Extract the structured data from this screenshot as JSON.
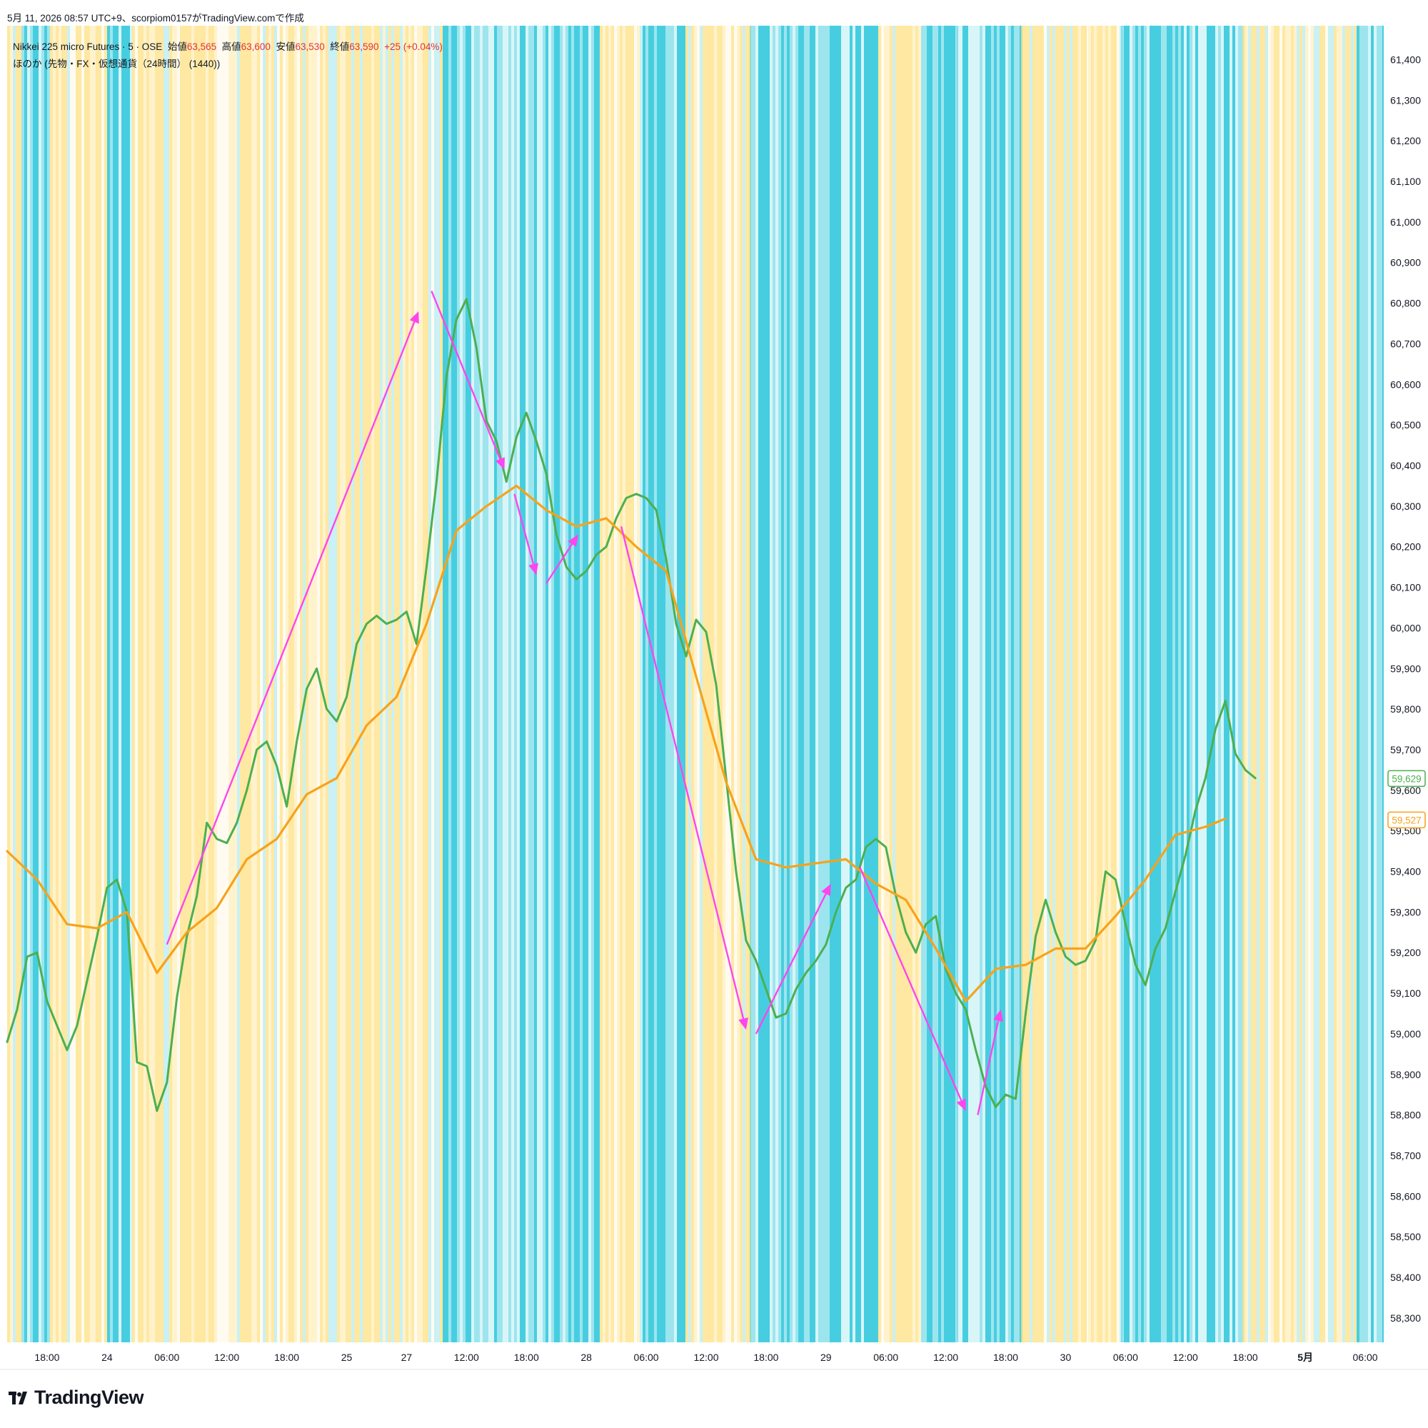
{
  "credit": "5月 11, 2026 08:57 UTC+9、scorpiom0157がTradingView.comで作成",
  "header": {
    "symbol": "Nikkei 225 micro Futures · 5 · OSE",
    "open_label": "始値",
    "open_value": "63,565",
    "high_label": "高値",
    "high_value": "63,600",
    "low_label": "安値",
    "low_value": "63,530",
    "close_label": "終値",
    "close_value": "63,590",
    "change": "+25 (+0.04%)",
    "indicator": "ほのか (先物・FX・仮想通貨（24時間） (1440))"
  },
  "logo": {
    "text": "TradingView",
    "icon": "tradingview-logo-icon"
  },
  "colors": {
    "price_line": "#4caf50",
    "ma_line": "#f7a21b",
    "arrows": "#ff44f0",
    "band_cyan": "#26c6da",
    "band_yellow": "#ffe082",
    "axis_text": "#131722"
  },
  "chart_data": {
    "type": "line",
    "ylim": [
      58240,
      61480
    ],
    "y_ticks": [
      "61,400",
      "61,300",
      "61,200",
      "61,100",
      "61,000",
      "60,900",
      "60,800",
      "60,700",
      "60,600",
      "60,500",
      "60,400",
      "60,300",
      "60,200",
      "60,100",
      "60,000",
      "59,900",
      "59,800",
      "59,700",
      "59,600",
      "59,500",
      "59,400",
      "59,300",
      "59,200",
      "59,100",
      "59,000",
      "58,900",
      "58,800",
      "58,700",
      "58,600",
      "58,500",
      "58,400",
      "58,300"
    ],
    "x_ticks": [
      {
        "label": "18:00",
        "t": 4
      },
      {
        "label": "24",
        "t": 10
      },
      {
        "label": "06:00",
        "t": 16
      },
      {
        "label": "12:00",
        "t": 22
      },
      {
        "label": "18:00",
        "t": 28
      },
      {
        "label": "25",
        "t": 34
      },
      {
        "label": "27",
        "t": 40
      },
      {
        "label": "12:00",
        "t": 46
      },
      {
        "label": "18:00",
        "t": 52
      },
      {
        "label": "28",
        "t": 58
      },
      {
        "label": "06:00",
        "t": 64
      },
      {
        "label": "12:00",
        "t": 70
      },
      {
        "label": "18:00",
        "t": 76
      },
      {
        "label": "29",
        "t": 82
      },
      {
        "label": "06:00",
        "t": 88
      },
      {
        "label": "12:00",
        "t": 94
      },
      {
        "label": "18:00",
        "t": 100
      },
      {
        "label": "30",
        "t": 106
      },
      {
        "label": "06:00",
        "t": 112
      },
      {
        "label": "12:00",
        "t": 118
      },
      {
        "label": "18:00",
        "t": 124
      },
      {
        "label": "5月",
        "t": 130,
        "bold": true
      },
      {
        "label": "06:00",
        "t": 136
      }
    ],
    "series": [
      {
        "role": "price",
        "color": "#4caf50",
        "points": [
          [
            0,
            58980
          ],
          [
            1,
            59060
          ],
          [
            2,
            59190
          ],
          [
            3,
            59200
          ],
          [
            4,
            59080
          ],
          [
            5,
            59020
          ],
          [
            6,
            58960
          ],
          [
            7,
            59020
          ],
          [
            8,
            59130
          ],
          [
            9,
            59240
          ],
          [
            10,
            59360
          ],
          [
            11,
            59380
          ],
          [
            12,
            59300
          ],
          [
            13,
            58930
          ],
          [
            14,
            58920
          ],
          [
            15,
            58810
          ],
          [
            16,
            58880
          ],
          [
            17,
            59090
          ],
          [
            18,
            59240
          ],
          [
            19,
            59340
          ],
          [
            20,
            59520
          ],
          [
            21,
            59480
          ],
          [
            22,
            59470
          ],
          [
            23,
            59520
          ],
          [
            24,
            59600
          ],
          [
            25,
            59700
          ],
          [
            26,
            59720
          ],
          [
            27,
            59660
          ],
          [
            28,
            59560
          ],
          [
            29,
            59720
          ],
          [
            30,
            59850
          ],
          [
            31,
            59900
          ],
          [
            32,
            59800
          ],
          [
            33,
            59770
          ],
          [
            34,
            59830
          ],
          [
            35,
            59960
          ],
          [
            36,
            60010
          ],
          [
            37,
            60030
          ],
          [
            38,
            60010
          ],
          [
            39,
            60020
          ],
          [
            40,
            60040
          ],
          [
            41,
            59960
          ],
          [
            42,
            60150
          ],
          [
            43,
            60360
          ],
          [
            44,
            60620
          ],
          [
            45,
            60760
          ],
          [
            46,
            60810
          ],
          [
            47,
            60690
          ],
          [
            48,
            60510
          ],
          [
            49,
            60460
          ],
          [
            50,
            60360
          ],
          [
            51,
            60470
          ],
          [
            52,
            60530
          ],
          [
            53,
            60460
          ],
          [
            54,
            60380
          ],
          [
            55,
            60230
          ],
          [
            56,
            60150
          ],
          [
            57,
            60120
          ],
          [
            58,
            60140
          ],
          [
            59,
            60180
          ],
          [
            60,
            60200
          ],
          [
            61,
            60270
          ],
          [
            62,
            60320
          ],
          [
            63,
            60330
          ],
          [
            64,
            60320
          ],
          [
            65,
            60290
          ],
          [
            66,
            60170
          ],
          [
            67,
            60010
          ],
          [
            68,
            59930
          ],
          [
            69,
            60020
          ],
          [
            70,
            59990
          ],
          [
            71,
            59860
          ],
          [
            72,
            59630
          ],
          [
            73,
            59400
          ],
          [
            74,
            59230
          ],
          [
            75,
            59180
          ],
          [
            76,
            59110
          ],
          [
            77,
            59040
          ],
          [
            78,
            59050
          ],
          [
            79,
            59110
          ],
          [
            80,
            59150
          ],
          [
            81,
            59180
          ],
          [
            82,
            59220
          ],
          [
            83,
            59300
          ],
          [
            84,
            59360
          ],
          [
            85,
            59380
          ],
          [
            86,
            59460
          ],
          [
            87,
            59480
          ],
          [
            88,
            59460
          ],
          [
            89,
            59340
          ],
          [
            90,
            59250
          ],
          [
            91,
            59200
          ],
          [
            92,
            59270
          ],
          [
            93,
            59290
          ],
          [
            94,
            59160
          ],
          [
            95,
            59100
          ],
          [
            96,
            59060
          ],
          [
            97,
            58960
          ],
          [
            98,
            58870
          ],
          [
            99,
            58820
          ],
          [
            100,
            58850
          ],
          [
            101,
            58840
          ],
          [
            102,
            59050
          ],
          [
            103,
            59240
          ],
          [
            104,
            59330
          ],
          [
            105,
            59250
          ],
          [
            106,
            59190
          ],
          [
            107,
            59170
          ],
          [
            108,
            59180
          ],
          [
            109,
            59230
          ],
          [
            110,
            59400
          ],
          [
            111,
            59380
          ],
          [
            112,
            59270
          ],
          [
            113,
            59170
          ],
          [
            114,
            59120
          ],
          [
            115,
            59210
          ],
          [
            116,
            59260
          ],
          [
            117,
            59350
          ],
          [
            118,
            59440
          ],
          [
            119,
            59550
          ],
          [
            120,
            59630
          ],
          [
            121,
            59750
          ],
          [
            122,
            59820
          ],
          [
            123,
            59690
          ],
          [
            124,
            59650
          ],
          [
            125,
            59630
          ]
        ]
      },
      {
        "role": "moving-average",
        "color": "#f7a21b",
        "points": [
          [
            0,
            59450
          ],
          [
            3,
            59380
          ],
          [
            6,
            59270
          ],
          [
            9,
            59260
          ],
          [
            12,
            59300
          ],
          [
            15,
            59150
          ],
          [
            18,
            59250
          ],
          [
            21,
            59310
          ],
          [
            24,
            59430
          ],
          [
            27,
            59480
          ],
          [
            30,
            59590
          ],
          [
            33,
            59630
          ],
          [
            36,
            59760
          ],
          [
            39,
            59830
          ],
          [
            42,
            60010
          ],
          [
            45,
            60240
          ],
          [
            48,
            60300
          ],
          [
            51,
            60350
          ],
          [
            54,
            60290
          ],
          [
            57,
            60250
          ],
          [
            60,
            60270
          ],
          [
            63,
            60200
          ],
          [
            66,
            60140
          ],
          [
            69,
            59880
          ],
          [
            72,
            59620
          ],
          [
            75,
            59430
          ],
          [
            78,
            59410
          ],
          [
            81,
            59420
          ],
          [
            84,
            59430
          ],
          [
            87,
            59370
          ],
          [
            90,
            59330
          ],
          [
            93,
            59210
          ],
          [
            96,
            59080
          ],
          [
            99,
            59160
          ],
          [
            102,
            59170
          ],
          [
            105,
            59210
          ],
          [
            108,
            59210
          ],
          [
            111,
            59290
          ],
          [
            114,
            59380
          ],
          [
            117,
            59490
          ],
          [
            120,
            59510
          ],
          [
            122,
            59530
          ]
        ]
      }
    ],
    "arrows": [
      [
        [
          16,
          59220
        ],
        [
          41.2,
          60780
        ]
      ],
      [
        [
          42.5,
          60830
        ],
        [
          49.8,
          60390
        ]
      ],
      [
        [
          50.8,
          60330
        ],
        [
          53.0,
          60130
        ]
      ],
      [
        [
          54.0,
          60110
        ],
        [
          57.2,
          60230
        ]
      ],
      [
        [
          61.5,
          60250
        ],
        [
          74.0,
          59010
        ]
      ],
      [
        [
          75.0,
          59000
        ],
        [
          82.5,
          59370
        ]
      ],
      [
        [
          85.4,
          59410
        ],
        [
          96.0,
          58810
        ]
      ],
      [
        [
          97.2,
          58800
        ],
        [
          99.5,
          59060
        ]
      ]
    ],
    "last_values": {
      "price": "59,629",
      "ma": "59,527"
    }
  }
}
